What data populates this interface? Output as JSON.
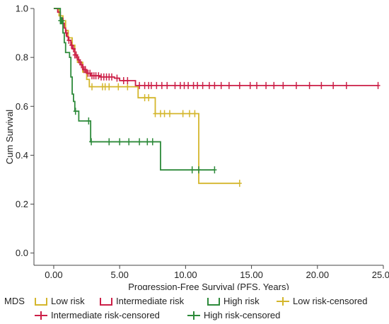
{
  "chart_data": {
    "type": "line",
    "subtype": "kaplan-meier step",
    "xlabel": "Progression-Free Survival (PFS, Years)",
    "ylabel": "Cum Survival",
    "xlim": [
      -1.5,
      25
    ],
    "ylim": [
      -0.05,
      1.0
    ],
    "xticks": [
      "0.00",
      "5.00",
      "10.00",
      "15.00",
      "20.00",
      "25.00"
    ],
    "yticks": [
      "0.0",
      "0.2",
      "0.4",
      "0.6",
      "0.8",
      "1.0"
    ],
    "grid": false,
    "legend": {
      "title": "MDS",
      "placement": "bottom",
      "entries": [
        "Low risk",
        "Intermediate risk",
        "High risk",
        "Low risk-censored",
        "Intermediate risk-censored",
        "High risk-censored"
      ]
    },
    "series": [
      {
        "name": "Low risk",
        "color": "#d4b62c",
        "step_points": [
          [
            0,
            1.0
          ],
          [
            0.4,
            0.97
          ],
          [
            0.7,
            0.95
          ],
          [
            0.9,
            0.91
          ],
          [
            1.1,
            0.88
          ],
          [
            1.4,
            0.85
          ],
          [
            1.6,
            0.81
          ],
          [
            1.8,
            0.78
          ],
          [
            2.2,
            0.74
          ],
          [
            2.5,
            0.71
          ],
          [
            2.7,
            0.68
          ],
          [
            6.2,
            0.68
          ],
          [
            6.4,
            0.635
          ],
          [
            7.5,
            0.635
          ],
          [
            7.7,
            0.57
          ],
          [
            11.0,
            0.57
          ],
          [
            11.0,
            0.285
          ],
          [
            14.1,
            0.285
          ]
        ],
        "censored_x": [
          2.9,
          3.7,
          3.9,
          4.2,
          4.9,
          5.6,
          6.9,
          7.2,
          7.7,
          8.1,
          8.4,
          8.8,
          9.8,
          10.3,
          10.7,
          14.1
        ]
      },
      {
        "name": "Intermediate risk",
        "color": "#cc1f47",
        "step_points": [
          [
            0,
            1.0
          ],
          [
            0.3,
            0.985
          ],
          [
            0.5,
            0.96
          ],
          [
            0.7,
            0.94
          ],
          [
            0.8,
            0.92
          ],
          [
            0.9,
            0.9
          ],
          [
            1.0,
            0.885
          ],
          [
            1.1,
            0.87
          ],
          [
            1.3,
            0.85
          ],
          [
            1.4,
            0.835
          ],
          [
            1.6,
            0.81
          ],
          [
            1.8,
            0.79
          ],
          [
            2.0,
            0.77
          ],
          [
            2.2,
            0.75
          ],
          [
            2.5,
            0.735
          ],
          [
            2.8,
            0.725
          ],
          [
            3.5,
            0.72
          ],
          [
            4.6,
            0.715
          ],
          [
            5.0,
            0.705
          ],
          [
            6.2,
            0.685
          ],
          [
            24.6,
            0.685
          ]
        ],
        "censored_x": [
          0.95,
          1.15,
          1.35,
          1.5,
          1.6,
          1.7,
          1.9,
          2.1,
          2.3,
          2.4,
          2.6,
          2.75,
          2.9,
          3.05,
          3.2,
          3.4,
          3.6,
          3.8,
          4.0,
          4.2,
          4.4,
          4.8,
          5.3,
          5.6,
          6.5,
          6.9,
          7.2,
          7.4,
          7.8,
          8.2,
          8.6,
          9.2,
          9.6,
          9.9,
          10.2,
          10.6,
          10.9,
          11.3,
          11.8,
          12.2,
          12.7,
          13.3,
          14.1,
          14.9,
          15.4,
          16.1,
          16.7,
          17.4,
          18.4,
          19.4,
          20.3,
          21.2,
          22.2,
          24.6
        ]
      },
      {
        "name": "High risk",
        "color": "#2d8a3a",
        "step_points": [
          [
            0,
            1.0
          ],
          [
            0.5,
            0.95
          ],
          [
            0.7,
            0.9
          ],
          [
            0.8,
            0.86
          ],
          [
            0.9,
            0.82
          ],
          [
            1.2,
            0.8
          ],
          [
            1.3,
            0.72
          ],
          [
            1.4,
            0.65
          ],
          [
            1.5,
            0.62
          ],
          [
            1.6,
            0.58
          ],
          [
            1.9,
            0.54
          ],
          [
            2.7,
            0.54
          ],
          [
            2.8,
            0.455
          ],
          [
            8.1,
            0.455
          ],
          [
            8.1,
            0.34
          ],
          [
            12.2,
            0.34
          ]
        ],
        "censored_x": [
          0.5,
          0.55,
          0.6,
          0.65,
          1.65,
          2.65,
          2.85,
          4.2,
          5.0,
          5.7,
          6.5,
          7.1,
          7.5,
          10.5,
          11.0,
          12.2
        ]
      }
    ]
  }
}
